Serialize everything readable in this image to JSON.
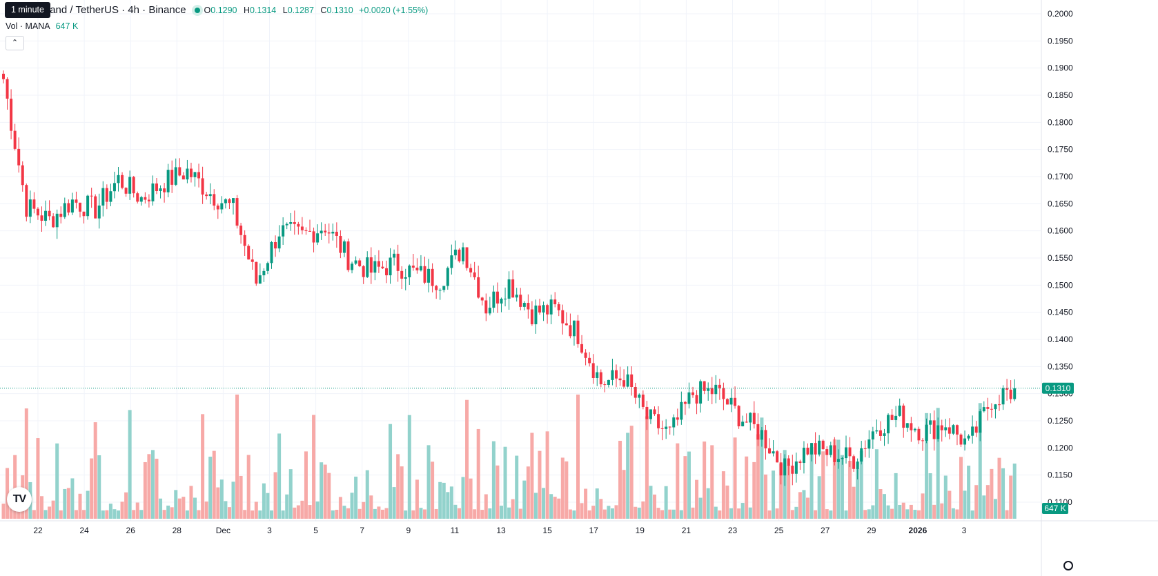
{
  "legend": {
    "tooltip": "1 minute",
    "symbol": "Decentraland / TetherUS · 4h · Binance",
    "ohlc": {
      "o_label": "O",
      "o": "0.1290",
      "h_label": "H",
      "h": "0.1314",
      "l_label": "L",
      "l": "0.1287",
      "c_label": "C",
      "c": "0.1310",
      "change": "+0.0020 (+1.55%)"
    },
    "volume_label": "Vol · MANA",
    "volume_value": "647 K",
    "collapse_icon": "chevron-up-icon"
  },
  "colors": {
    "up": "#089981",
    "down": "#f23645",
    "up_volume": "#92d2cc",
    "down_volume": "#f7a9a7",
    "grid": "#f0f3fa",
    "text": "#131722",
    "price_line": "#089981"
  },
  "price_axis": {
    "ticks": [
      "0.2000",
      "0.1950",
      "0.1900",
      "0.1850",
      "0.1800",
      "0.1750",
      "0.1700",
      "0.1650",
      "0.1600",
      "0.1550",
      "0.1500",
      "0.1450",
      "0.1400",
      "0.1350",
      "0.1300",
      "0.1250",
      "0.1200",
      "0.1150",
      "0.1100"
    ],
    "current_label": "0.1310",
    "volume_label": "647 K"
  },
  "time_axis": {
    "ticks": [
      "22",
      "24",
      "26",
      "28",
      "Dec",
      "3",
      "5",
      "7",
      "9",
      "11",
      "13",
      "15",
      "17",
      "19",
      "21",
      "23",
      "25",
      "27",
      "29",
      "2026",
      "3"
    ]
  },
  "chart_data": {
    "type": "candlestick",
    "title": "Decentraland / TetherUS · 4h · Binance",
    "interval": "4h",
    "x_range": [
      "Nov 20",
      "Jan 3"
    ],
    "y_range": [
      0.1075,
      0.2015
    ],
    "grid": true,
    "last_price": 0.131,
    "last_volume": "647 K",
    "anchors": [
      {
        "date": "Nov 20",
        "close": 0.188
      },
      {
        "date": "Nov 21",
        "close": 0.1645
      },
      {
        "date": "Nov 22",
        "close": 0.162
      },
      {
        "date": "Nov 23",
        "close": 0.1655
      },
      {
        "date": "Nov 24",
        "close": 0.164
      },
      {
        "date": "Nov 25",
        "close": 0.1695
      },
      {
        "date": "Nov 26",
        "close": 0.166
      },
      {
        "date": "Nov 27",
        "close": 0.169
      },
      {
        "date": "Nov 28",
        "close": 0.171
      },
      {
        "date": "Nov 29",
        "close": 0.167
      },
      {
        "date": "Nov 30",
        "close": 0.164
      },
      {
        "date": "Dec 1",
        "close": 0.1505
      },
      {
        "date": "Dec 2",
        "close": 0.16
      },
      {
        "date": "Dec 3",
        "close": 0.159
      },
      {
        "date": "Dec 4",
        "close": 0.161
      },
      {
        "date": "Dec 5",
        "close": 0.155
      },
      {
        "date": "Dec 6",
        "close": 0.1525
      },
      {
        "date": "Dec 7",
        "close": 0.154
      },
      {
        "date": "Dec 8",
        "close": 0.152
      },
      {
        "date": "Dec 9",
        "close": 0.151
      },
      {
        "date": "Dec 10",
        "close": 0.157
      },
      {
        "date": "Dec 11",
        "close": 0.146
      },
      {
        "date": "Dec 12",
        "close": 0.1505
      },
      {
        "date": "Dec 13",
        "close": 0.145
      },
      {
        "date": "Dec 14",
        "close": 0.1455
      },
      {
        "date": "Dec 15",
        "close": 0.141
      },
      {
        "date": "Dec 16",
        "close": 0.132
      },
      {
        "date": "Dec 17",
        "close": 0.133
      },
      {
        "date": "Dec 18",
        "close": 0.1255
      },
      {
        "date": "Dec 19",
        "close": 0.1225
      },
      {
        "date": "Dec 20",
        "close": 0.13
      },
      {
        "date": "Dec 21",
        "close": 0.1305
      },
      {
        "date": "Dec 22",
        "close": 0.126
      },
      {
        "date": "Dec 23",
        "close": 0.1225
      },
      {
        "date": "Dec 24",
        "close": 0.116
      },
      {
        "date": "Dec 25",
        "close": 0.12
      },
      {
        "date": "Dec 26",
        "close": 0.119
      },
      {
        "date": "Dec 27",
        "close": 0.118
      },
      {
        "date": "Dec 28",
        "close": 0.124
      },
      {
        "date": "Dec 29",
        "close": 0.126
      },
      {
        "date": "Dec 30",
        "close": 0.123
      },
      {
        "date": "Dec 31",
        "close": 0.1245
      },
      {
        "date": "Jan 1",
        "close": 0.1205
      },
      {
        "date": "Jan 2",
        "close": 0.129
      },
      {
        "date": "Jan 3",
        "close": 0.131
      }
    ]
  }
}
